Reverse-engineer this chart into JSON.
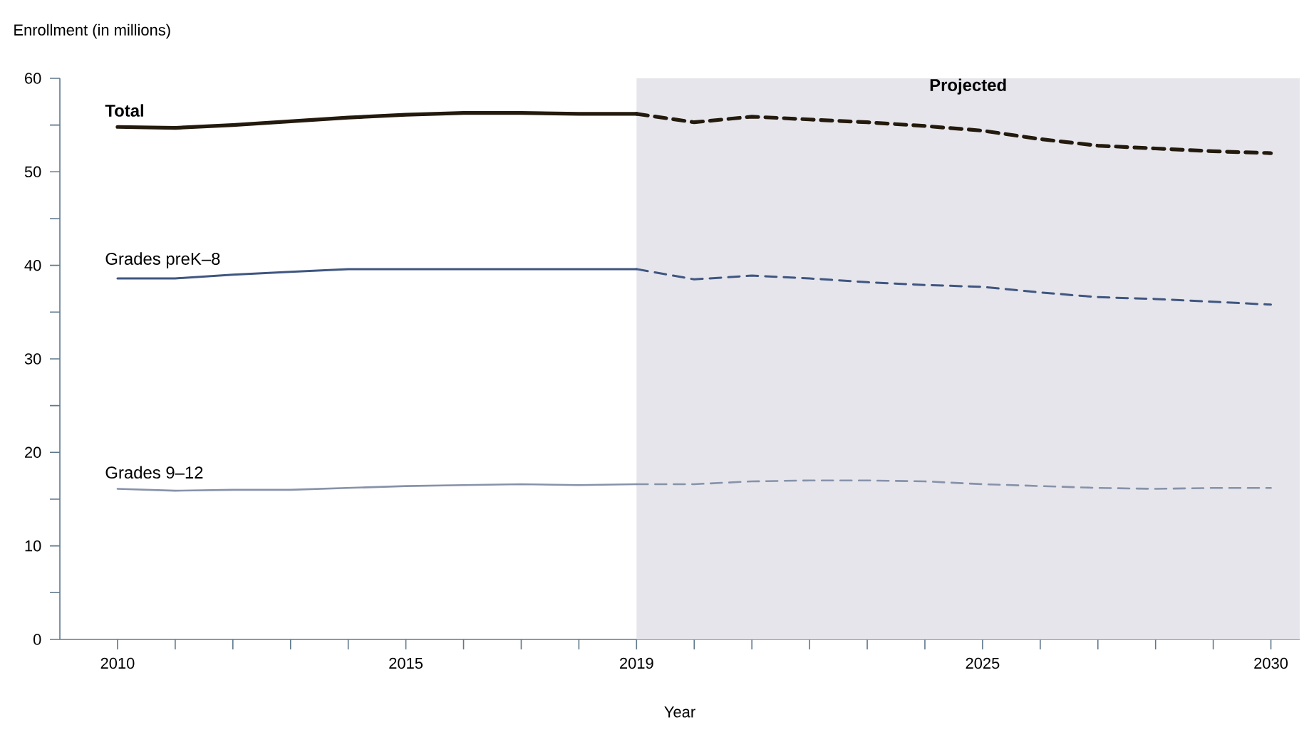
{
  "chart_data": {
    "type": "line",
    "ylabel": "Enrollment (in millions)",
    "xlabel": "Year",
    "xlim": [
      2009,
      2030.5
    ],
    "ylim": [
      0,
      60
    ],
    "xticks": [
      2010,
      {
        "value": 2011,
        "label": null
      },
      {
        "value": 2012,
        "label": null
      },
      {
        "value": 2013,
        "label": null
      },
      {
        "value": 2014,
        "label": null
      },
      2015,
      {
        "value": 2016,
        "label": null
      },
      {
        "value": 2017,
        "label": null
      },
      {
        "value": 2018,
        "label": null
      },
      2019,
      {
        "value": 2020,
        "label": null
      },
      {
        "value": 2021,
        "label": null
      },
      {
        "value": 2022,
        "label": null
      },
      {
        "value": 2023,
        "label": null
      },
      {
        "value": 2024,
        "label": null
      },
      2025,
      {
        "value": 2026,
        "label": null
      },
      {
        "value": 2027,
        "label": null
      },
      {
        "value": 2028,
        "label": null
      },
      {
        "value": 2029,
        "label": null
      },
      2030
    ],
    "yticks": [
      0,
      {
        "value": 5,
        "label": null
      },
      10,
      {
        "value": 15,
        "label": null
      },
      20,
      {
        "value": 25,
        "label": null
      },
      30,
      {
        "value": 35,
        "label": null
      },
      40,
      {
        "value": 45,
        "label": null
      },
      50,
      {
        "value": 55,
        "label": null
      },
      60
    ],
    "grid": false,
    "marker": "none",
    "bands": [
      {
        "axis": "x",
        "from": 2019,
        "to": 2030.5,
        "label": "Projected",
        "color": "#e5e5eb"
      }
    ],
    "series": [
      {
        "name": "Total",
        "color": "#231a0d",
        "line_style": "solid",
        "x": [
          2010,
          2011,
          2012,
          2013,
          2014,
          2015,
          2016,
          2017,
          2018,
          2019
        ],
        "values": [
          54.8,
          54.7,
          55.0,
          55.4,
          55.8,
          56.1,
          56.3,
          56.3,
          56.2,
          56.2
        ]
      },
      {
        "color": "#231a0d",
        "line_style": "dashed",
        "x": [
          2019,
          2020,
          2021,
          2022,
          2023,
          2024,
          2025,
          2026,
          2027,
          2028,
          2029,
          2030
        ],
        "values": [
          56.2,
          55.3,
          55.9,
          55.6,
          55.3,
          54.9,
          54.4,
          53.5,
          52.8,
          52.5,
          52.2,
          52.0
        ]
      },
      {
        "name": "Grades preK–8",
        "color": "#3f5680",
        "line_style": "solid",
        "x": [
          2010,
          2011,
          2012,
          2013,
          2014,
          2015,
          2016,
          2017,
          2018,
          2019
        ],
        "values": [
          38.6,
          38.6,
          39.0,
          39.3,
          39.6,
          39.6,
          39.6,
          39.6,
          39.6,
          39.6
        ]
      },
      {
        "color": "#3f5680",
        "line_style": "dashed",
        "x": [
          2019,
          2020,
          2021,
          2022,
          2023,
          2024,
          2025,
          2026,
          2027,
          2028,
          2029,
          2030
        ],
        "values": [
          39.6,
          38.5,
          38.9,
          38.6,
          38.2,
          37.9,
          37.7,
          37.1,
          36.6,
          36.4,
          36.1,
          35.8
        ]
      },
      {
        "name": "Grades 9–12",
        "color": "#8792aa",
        "line_style": "solid",
        "x": [
          2010,
          2011,
          2012,
          2013,
          2014,
          2015,
          2016,
          2017,
          2018,
          2019
        ],
        "values": [
          16.1,
          15.9,
          16.0,
          16.0,
          16.2,
          16.4,
          16.5,
          16.6,
          16.5,
          16.6
        ]
      },
      {
        "color": "#8792aa",
        "line_style": "dashed",
        "x": [
          2019,
          2020,
          2021,
          2022,
          2023,
          2024,
          2025,
          2026,
          2027,
          2028,
          2029,
          2030
        ],
        "values": [
          16.6,
          16.6,
          16.9,
          17.0,
          17.0,
          16.9,
          16.6,
          16.4,
          16.2,
          16.1,
          16.2,
          16.2
        ]
      }
    ]
  }
}
